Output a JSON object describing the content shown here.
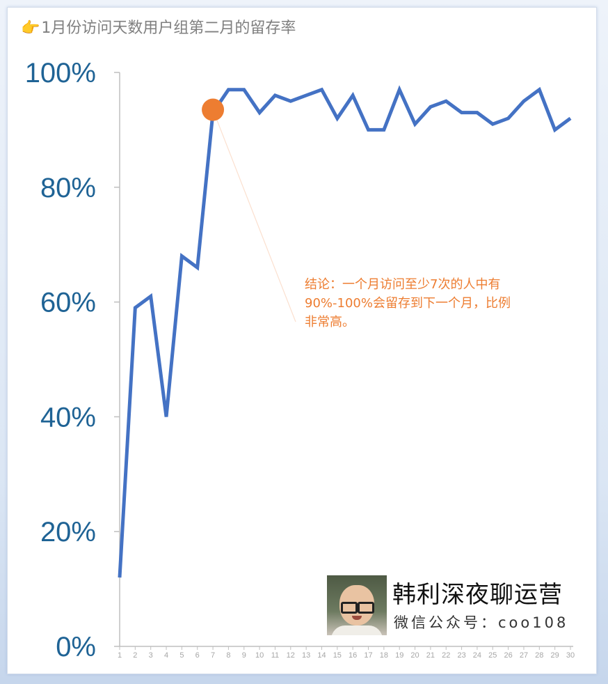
{
  "chart_data": {
    "type": "line",
    "title": "1月份访问天数用户组第二月的留存率",
    "x": [
      1,
      2,
      3,
      4,
      5,
      6,
      7,
      8,
      9,
      10,
      11,
      12,
      13,
      14,
      15,
      16,
      17,
      18,
      19,
      20,
      21,
      22,
      23,
      24,
      25,
      26,
      27,
      28,
      29,
      30
    ],
    "x_tick_labels": [
      "1",
      "2",
      "3",
      "4",
      "5",
      "6",
      "7",
      "8",
      "9",
      "10",
      "11",
      "12",
      "13",
      "14",
      "15",
      "16",
      "17",
      "18",
      "19",
      "20",
      "21",
      "22",
      "23",
      "24",
      "25",
      "26",
      "27",
      "28",
      "29",
      "30"
    ],
    "series": [
      {
        "values": [
          0.12,
          0.59,
          0.61,
          0.4,
          0.68,
          0.66,
          0.93,
          0.97,
          0.97,
          0.93,
          0.96,
          0.95,
          0.96,
          0.97,
          0.92,
          0.96,
          0.9,
          0.9,
          0.97,
          0.91,
          0.94,
          0.95,
          0.93,
          0.93,
          0.91,
          0.92,
          0.95,
          0.97,
          0.9,
          0.92
        ],
        "color": "#4472c4"
      }
    ],
    "y_tick_labels": [
      "0%",
      "20%",
      "40%",
      "60%",
      "80%",
      "100%"
    ],
    "y_ticks": [
      0,
      0.2,
      0.4,
      0.6,
      0.8,
      1.0
    ],
    "ylim": [
      0,
      1.0
    ],
    "xlim": [
      1,
      30
    ],
    "grid": false,
    "highlight": {
      "x": 7,
      "y": 0.935,
      "color": "#ed7d31"
    },
    "annotation": {
      "text": "结论：一个月访问至少7次的人中有90%-100%会留存到下一个月，比例非常高。",
      "color": "#ed7d31"
    }
  },
  "title_icon": "pointing-hand-icon",
  "brand": {
    "name": "韩利深夜聊运营",
    "subtitle": "微信公众号：coo108",
    "avatar_icon": "avatar-photo"
  }
}
